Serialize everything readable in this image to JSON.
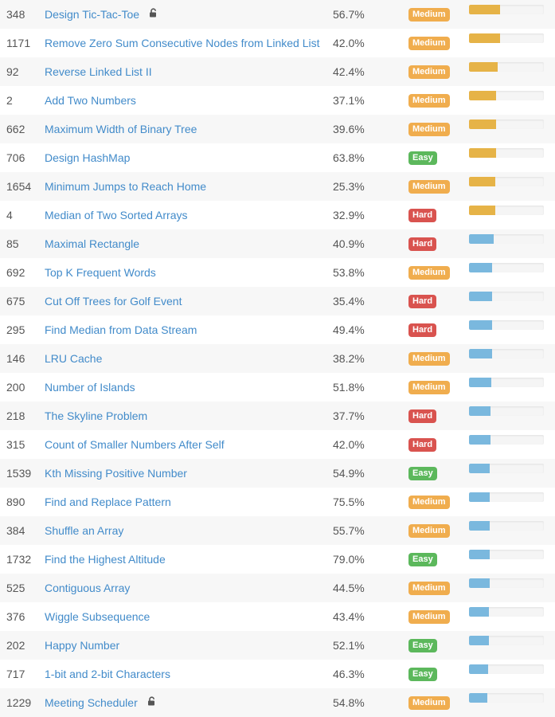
{
  "colors": {
    "link": "#428bca",
    "text": "#555555",
    "easy": "#5cb85c",
    "medium": "#f0ad4e",
    "hard": "#d9534f",
    "freq_gold": "#e6b347",
    "freq_blue": "#7ab8de"
  },
  "problems": [
    {
      "id": "348",
      "title": "Design Tic-Tac-Toe",
      "locked": true,
      "acceptance": "56.7%",
      "difficulty": "Medium",
      "frequency": 0.41,
      "freq_color": "gold"
    },
    {
      "id": "1171",
      "title": "Remove Zero Sum Consecutive Nodes from Linked List",
      "locked": false,
      "acceptance": "42.0%",
      "difficulty": "Medium",
      "frequency": 0.41,
      "freq_color": "gold"
    },
    {
      "id": "92",
      "title": "Reverse Linked List II",
      "locked": false,
      "acceptance": "42.4%",
      "difficulty": "Medium",
      "frequency": 0.38,
      "freq_color": "gold"
    },
    {
      "id": "2",
      "title": "Add Two Numbers",
      "locked": false,
      "acceptance": "37.1%",
      "difficulty": "Medium",
      "frequency": 0.36,
      "freq_color": "gold"
    },
    {
      "id": "662",
      "title": "Maximum Width of Binary Tree",
      "locked": false,
      "acceptance": "39.6%",
      "difficulty": "Medium",
      "frequency": 0.36,
      "freq_color": "gold"
    },
    {
      "id": "706",
      "title": "Design HashMap",
      "locked": false,
      "acceptance": "63.8%",
      "difficulty": "Easy",
      "frequency": 0.36,
      "freq_color": "gold"
    },
    {
      "id": "1654",
      "title": "Minimum Jumps to Reach Home",
      "locked": false,
      "acceptance": "25.3%",
      "difficulty": "Medium",
      "frequency": 0.35,
      "freq_color": "gold"
    },
    {
      "id": "4",
      "title": "Median of Two Sorted Arrays",
      "locked": false,
      "acceptance": "32.9%",
      "difficulty": "Hard",
      "frequency": 0.35,
      "freq_color": "gold"
    },
    {
      "id": "85",
      "title": "Maximal Rectangle",
      "locked": false,
      "acceptance": "40.9%",
      "difficulty": "Hard",
      "frequency": 0.33,
      "freq_color": "blue"
    },
    {
      "id": "692",
      "title": "Top K Frequent Words",
      "locked": false,
      "acceptance": "53.8%",
      "difficulty": "Medium",
      "frequency": 0.31,
      "freq_color": "blue"
    },
    {
      "id": "675",
      "title": "Cut Off Trees for Golf Event",
      "locked": false,
      "acceptance": "35.4%",
      "difficulty": "Hard",
      "frequency": 0.31,
      "freq_color": "blue"
    },
    {
      "id": "295",
      "title": "Find Median from Data Stream",
      "locked": false,
      "acceptance": "49.4%",
      "difficulty": "Hard",
      "frequency": 0.31,
      "freq_color": "blue"
    },
    {
      "id": "146",
      "title": "LRU Cache",
      "locked": false,
      "acceptance": "38.2%",
      "difficulty": "Medium",
      "frequency": 0.31,
      "freq_color": "blue"
    },
    {
      "id": "200",
      "title": "Number of Islands",
      "locked": false,
      "acceptance": "51.8%",
      "difficulty": "Medium",
      "frequency": 0.3,
      "freq_color": "blue"
    },
    {
      "id": "218",
      "title": "The Skyline Problem",
      "locked": false,
      "acceptance": "37.7%",
      "difficulty": "Hard",
      "frequency": 0.29,
      "freq_color": "blue"
    },
    {
      "id": "315",
      "title": "Count of Smaller Numbers After Self",
      "locked": false,
      "acceptance": "42.0%",
      "difficulty": "Hard",
      "frequency": 0.29,
      "freq_color": "blue"
    },
    {
      "id": "1539",
      "title": "Kth Missing Positive Number",
      "locked": false,
      "acceptance": "54.9%",
      "difficulty": "Easy",
      "frequency": 0.28,
      "freq_color": "blue"
    },
    {
      "id": "890",
      "title": "Find and Replace Pattern",
      "locked": false,
      "acceptance": "75.5%",
      "difficulty": "Medium",
      "frequency": 0.28,
      "freq_color": "blue"
    },
    {
      "id": "384",
      "title": "Shuffle an Array",
      "locked": false,
      "acceptance": "55.7%",
      "difficulty": "Medium",
      "frequency": 0.28,
      "freq_color": "blue"
    },
    {
      "id": "1732",
      "title": "Find the Highest Altitude",
      "locked": false,
      "acceptance": "79.0%",
      "difficulty": "Easy",
      "frequency": 0.28,
      "freq_color": "blue"
    },
    {
      "id": "525",
      "title": "Contiguous Array",
      "locked": false,
      "acceptance": "44.5%",
      "difficulty": "Medium",
      "frequency": 0.28,
      "freq_color": "blue"
    },
    {
      "id": "376",
      "title": "Wiggle Subsequence",
      "locked": false,
      "acceptance": "43.4%",
      "difficulty": "Medium",
      "frequency": 0.27,
      "freq_color": "blue"
    },
    {
      "id": "202",
      "title": "Happy Number",
      "locked": false,
      "acceptance": "52.1%",
      "difficulty": "Easy",
      "frequency": 0.27,
      "freq_color": "blue"
    },
    {
      "id": "717",
      "title": "1-bit and 2-bit Characters",
      "locked": false,
      "acceptance": "46.3%",
      "difficulty": "Easy",
      "frequency": 0.26,
      "freq_color": "blue"
    },
    {
      "id": "1229",
      "title": "Meeting Scheduler",
      "locked": true,
      "acceptance": "54.8%",
      "difficulty": "Medium",
      "frequency": 0.24,
      "freq_color": "blue"
    }
  ]
}
